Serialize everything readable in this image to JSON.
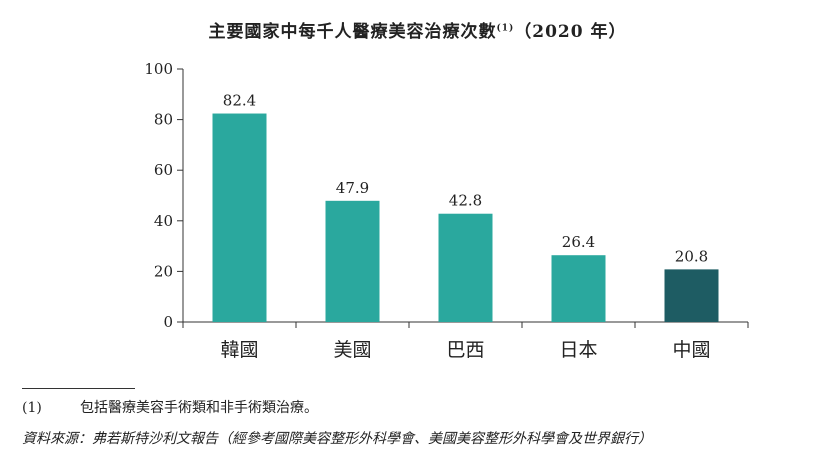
{
  "chart_data": {
    "type": "bar",
    "title": "主要國家中每千人醫療美容治療次數",
    "title_note": "(1)",
    "title_year": "（2020 年）",
    "categories": [
      "韓國",
      "美國",
      "巴西",
      "日本",
      "中國"
    ],
    "values": [
      82.4,
      47.9,
      42.8,
      26.4,
      20.8
    ],
    "value_labels": [
      "82.4",
      "47.9",
      "42.8",
      "26.4",
      "20.8"
    ],
    "yticks": [
      "0",
      "20",
      "40",
      "60",
      "80",
      "100"
    ],
    "ylim": [
      0,
      100
    ],
    "xlabel": "",
    "ylabel": "",
    "grid": false,
    "colors": [
      "#2aa89e",
      "#2aa89e",
      "#2aa89e",
      "#2aa89e",
      "#1e5c63"
    ]
  },
  "footnote": {
    "number": "(1)",
    "text": "包括醫療美容手術類和非手術類治療。"
  },
  "source": "資料來源：弗若斯特沙利文報告（經參考國際美容整形外科學會、美國美容整形外科學會及世界銀行）",
  "colors": {
    "axis": "#333333",
    "text": "#222222"
  }
}
